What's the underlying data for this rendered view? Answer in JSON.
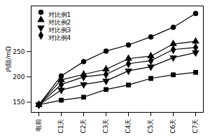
{
  "chart_data": {
    "type": "line",
    "y_label": "内阻/mΩ",
    "categories": [
      "电前",
      "C1天",
      "C2天",
      "C3天",
      "C4天",
      "C5天",
      "C6天",
      "C7天"
    ],
    "series": [
      {
        "name": "对比例1",
        "color": "#000000",
        "marker": "circle",
        "values": [
          145,
          202,
          230,
          251,
          263,
          279,
          298,
          325
        ]
      },
      {
        "name": "对比例2",
        "color": "#000000",
        "marker": "triangle",
        "values": [
          145,
          194,
          205,
          215,
          236,
          241,
          265,
          270
        ]
      },
      {
        "name": "对比例3",
        "color": "#000000",
        "marker": "triangle-down",
        "values": [
          145,
          174,
          185,
          192,
          212,
          220,
          238,
          248
        ]
      },
      {
        "name": "对比例4",
        "color": "#000000",
        "marker": "diamond",
        "values": [
          145,
          185,
          200,
          205,
          226,
          232,
          254,
          258
        ]
      },
      {
        "name": null,
        "color": "#000000",
        "marker": "square",
        "values": [
          145,
          154,
          160,
          175,
          184,
          197,
          204,
          209
        ]
      }
    ],
    "ylim": [
      130,
      340
    ],
    "yticks": [
      150,
      200,
      250
    ],
    "legend": "upper left"
  }
}
